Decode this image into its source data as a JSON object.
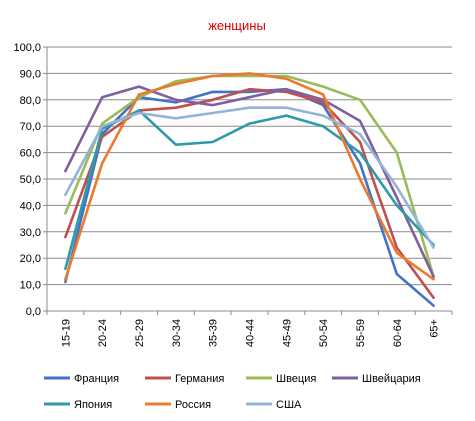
{
  "chart_data": {
    "type": "line",
    "title": "женщины",
    "title_color": "#e00000",
    "categories": [
      "15-19",
      "20-24",
      "25-29",
      "30-34",
      "35-39",
      "40-44",
      "45-49",
      "50-54",
      "55-59",
      "60-64",
      "65+"
    ],
    "ylim": [
      0,
      100
    ],
    "yticks": [
      "0,0",
      "10,0",
      "20,0",
      "30,0",
      "40,0",
      "50,0",
      "60,0",
      "70,0",
      "80,0",
      "90,0",
      "100,0"
    ],
    "grid": true,
    "legend_position": "bottom",
    "series": [
      {
        "name": "Франция",
        "color": "#4472c4",
        "values": [
          11,
          67,
          81,
          79,
          83,
          83,
          84,
          78,
          56,
          14,
          2
        ]
      },
      {
        "name": "Германия",
        "color": "#c0504d",
        "values": [
          28,
          66,
          76,
          77,
          80,
          84,
          83,
          79,
          64,
          24,
          5
        ]
      },
      {
        "name": "Швеция",
        "color": "#9bbb59",
        "values": [
          37,
          71,
          81,
          87,
          89,
          89,
          89,
          85,
          80,
          60,
          13
        ]
      },
      {
        "name": "Швейцария",
        "color": "#7f5fa0",
        "values": [
          53,
          81,
          85,
          80,
          78,
          81,
          84,
          80,
          72,
          43,
          13
        ]
      },
      {
        "name": "Япония",
        "color": "#2f9aaa",
        "values": [
          16,
          69,
          76,
          63,
          64,
          71,
          74,
          70,
          60,
          40,
          25
        ]
      },
      {
        "name": "Россия",
        "color": "#ea7b2d",
        "values": [
          12,
          56,
          82,
          86,
          89,
          90,
          88,
          82,
          50,
          22,
          12
        ]
      },
      {
        "name": "США",
        "color": "#95b3d7",
        "values": [
          44,
          70,
          75,
          73,
          75,
          77,
          77,
          74,
          67,
          47,
          24
        ]
      }
    ]
  }
}
